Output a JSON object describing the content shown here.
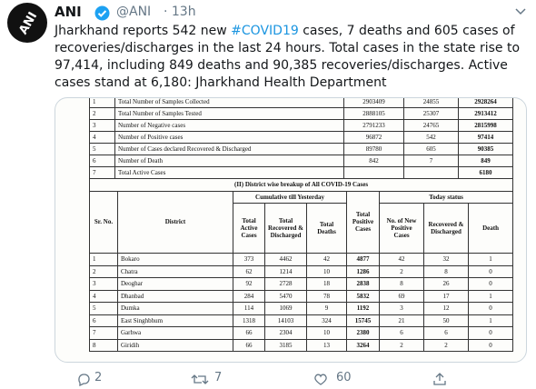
{
  "tweet": {
    "author": "ANI",
    "handle": "@ANI",
    "time": "· 13h",
    "text_parts": [
      "Jharkhand reports 542 new ",
      "#COVID19",
      " cases, 7 deaths and 605 cases of recoveries/discharges in the last 24 hours. Total cases in the state rise to 97,414, including 849 deaths and 90,385 recoveries/discharges. Active cases stand at 6,180: Jharkhand Health Department"
    ]
  },
  "image": {
    "summary_table": {
      "rows": [
        [
          1,
          "Total Number of Samples Collected",
          2903409,
          24855,
          2928264
        ],
        [
          2,
          "Total Number of Samples Tested",
          2888105,
          25307,
          2913412
        ],
        [
          3,
          "Number of Negative cases",
          2791233,
          24765,
          2815998
        ],
        [
          4,
          "Number of Positive cases",
          96872,
          542,
          97414
        ],
        [
          5,
          "Number of Cases declared Recovered & Discharged",
          89780,
          605,
          90385
        ],
        [
          6,
          "Number of Death",
          842,
          7,
          849
        ],
        [
          7,
          "Total Active Cases",
          null,
          null,
          6180
        ]
      ]
    },
    "district_table": {
      "title": "(II) District wise breakup of All COVID-19 Cases",
      "headers": {
        "sr_no": "Sr. No.",
        "district": "District",
        "cumulative": "Cumulative till Yesterday",
        "active": "Total Active Cases",
        "recovered": "Total Recovered & Discharged",
        "deaths": "Total Deaths",
        "total_positive": "Total Positive Cases",
        "today": "Today status",
        "new_positive": "No. of New Positive Cases",
        "today_recovered": "Recovered & Discharged",
        "today_death": "Death"
      },
      "rows": [
        [
          1,
          "Bokaro",
          373,
          4462,
          42,
          4877,
          42,
          32,
          1
        ],
        [
          2,
          "Chatra",
          62,
          1214,
          10,
          1286,
          2,
          8,
          0
        ],
        [
          3,
          "Deoghar",
          92,
          2728,
          18,
          2838,
          8,
          26,
          0
        ],
        [
          4,
          "Dhanbad",
          284,
          5470,
          78,
          5832,
          69,
          17,
          1
        ],
        [
          5,
          "Dumka",
          114,
          1069,
          9,
          1192,
          3,
          12,
          0
        ],
        [
          6,
          "East Singhbhum",
          1318,
          14103,
          324,
          15745,
          21,
          50,
          1
        ],
        [
          7,
          "Garhwa",
          66,
          2304,
          10,
          2380,
          6,
          6,
          0
        ],
        [
          8,
          "Giridih",
          66,
          3185,
          13,
          3264,
          2,
          2,
          0
        ]
      ]
    }
  },
  "actions": {
    "replies": 2,
    "retweets": 7,
    "likes": 60
  }
}
